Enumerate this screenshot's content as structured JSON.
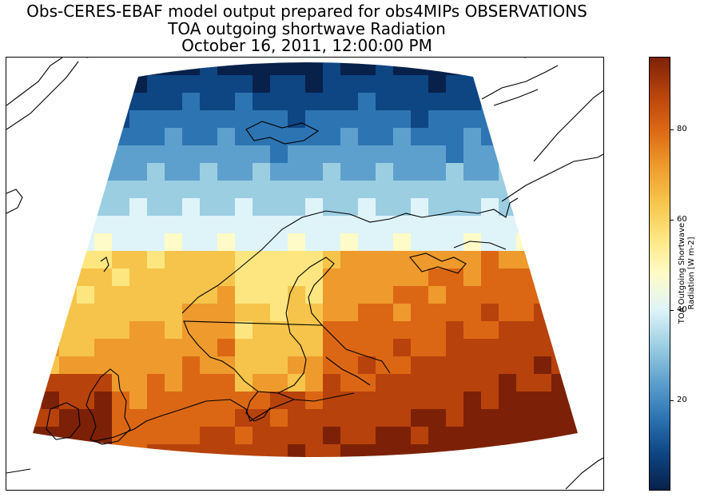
{
  "title": {
    "line1": "Obs-CERES-EBAF model output prepared for obs4MIPs OBSERVATIONS",
    "line2": "TOA outgoing shortwave Radiation",
    "line3": "October 16, 2011, 12:00:00 PM"
  },
  "map": {
    "variable": "TOA outgoing shortwave Radiation",
    "region": "Northern Europe / North Atlantic",
    "projection": "conic",
    "coastlines": true,
    "value_range": [
      0,
      96
    ]
  },
  "colorbar": {
    "label_line1": "TOA Outgoing Shortwave",
    "label_line2": "Radiation [W m-2]",
    "min": 0,
    "max": 96,
    "ticks": [
      {
        "value": 20,
        "label": "20"
      },
      {
        "value": 40,
        "label": "40"
      },
      {
        "value": 60,
        "label": "60"
      },
      {
        "value": 80,
        "label": "80"
      }
    ],
    "colors": [
      "#08214a",
      "#0e4583",
      "#2d74b2",
      "#5ea0cd",
      "#9ccee2",
      "#dff4f9",
      "#fffbc8",
      "#fde680",
      "#f6c44a",
      "#ee9a2c",
      "#db6714",
      "#b7420c",
      "#7c2107"
    ]
  }
}
